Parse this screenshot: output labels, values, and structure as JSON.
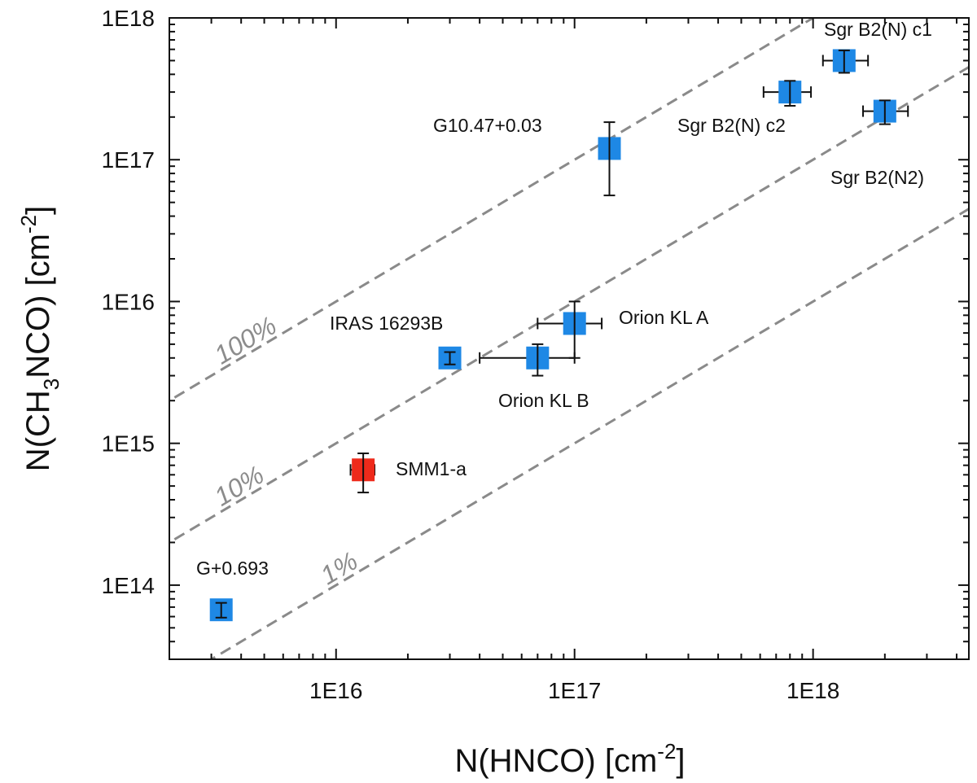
{
  "chart_data": {
    "type": "scatter",
    "xlabel": {
      "main": "N(HNCO) [cm",
      "sup": "-2",
      "end": "]"
    },
    "ylabel": {
      "main": "N(CH",
      "sub": "3",
      "mid": "NCO) [cm",
      "sup": "-2",
      "end": "]"
    },
    "xscale": "log",
    "yscale": "log",
    "xlim": [
      2000000000000000.0,
      4.5e+18
    ],
    "ylim": [
      30000000000000.0,
      1e+18
    ],
    "x_ticks": [
      1e+16,
      1e+17,
      1e+18
    ],
    "x_tick_labels": [
      "1E16",
      "1E17",
      "1E18"
    ],
    "y_ticks": [
      100000000000000.0,
      1000000000000000.0,
      1e+16,
      1e+17,
      1e+18
    ],
    "y_tick_labels": [
      "1E14",
      "1E15",
      "1E16",
      "1E17",
      "1E18"
    ],
    "ratio_lines": [
      {
        "ratio": 1.0,
        "label": "100%"
      },
      {
        "ratio": 0.1,
        "label": "10%"
      },
      {
        "ratio": 0.01,
        "label": "1%"
      }
    ],
    "points": [
      {
        "name": "Sgr B2(N) c1",
        "x": 1.35e+18,
        "y": 5e+17,
        "xerr": [
          1.1e+18,
          1.7e+18
        ],
        "yerr": [
          4.1e+17,
          5.9e+17
        ],
        "color": "#1e88e5"
      },
      {
        "name": "Sgr B2(N) c2",
        "x": 8e+17,
        "y": 3e+17,
        "xerr": [
          6.2e+17,
          9.8e+17
        ],
        "yerr": [
          2.4e+17,
          3.6e+17
        ],
        "color": "#1e88e5"
      },
      {
        "name": "Sgr B2(N2)",
        "x": 2e+18,
        "y": 2.2e+17,
        "xerr": [
          1.62e+18,
          2.5e+18
        ],
        "yerr": [
          1.78e+17,
          2.62e+17
        ],
        "color": "#1e88e5"
      },
      {
        "name": "G10.47+0.03",
        "x": 1.4e+17,
        "y": 1.2e+17,
        "xerr": [
          1.4e+17,
          1.4e+17
        ],
        "yerr": [
          5.6e+16,
          1.84e+17
        ],
        "color": "#1e88e5"
      },
      {
        "name": "Orion KL A",
        "x": 1e+17,
        "y": 7000000000000000.0,
        "xerr": [
          7e+16,
          1.3e+17
        ],
        "yerr": [
          4000000000000000.0,
          1e+16
        ],
        "color": "#1e88e5"
      },
      {
        "name": "Orion KL B",
        "x": 7e+16,
        "y": 4000000000000000.0,
        "xerr": [
          4e+16,
          1e+17
        ],
        "yerr": [
          3000000000000000.0,
          5000000000000000.0
        ],
        "color": "#1e88e5"
      },
      {
        "name": "IRAS 16293B",
        "x": 3e+16,
        "y": 4000000000000000.0,
        "xerr": [
          2.8e+16,
          3.2e+16
        ],
        "yerr": [
          3600000000000000.0,
          4400000000000000.0
        ],
        "color": "#1e88e5"
      },
      {
        "name": "SMM1-a",
        "x": 1.3e+16,
        "y": 650000000000000.0,
        "xerr": [
          1.15e+16,
          1.45e+16
        ],
        "yerr": [
          450000000000000.0,
          850000000000000.0
        ],
        "color": "#ee2a1b"
      },
      {
        "name": "G+0.693",
        "x": 3300000000000000.0,
        "y": 67000000000000.0,
        "xerr": [
          3300000000000000.0,
          3300000000000000.0
        ],
        "yerr": [
          59000000000000.0,
          75000000000000.0
        ],
        "color": "#1e88e5"
      }
    ]
  }
}
